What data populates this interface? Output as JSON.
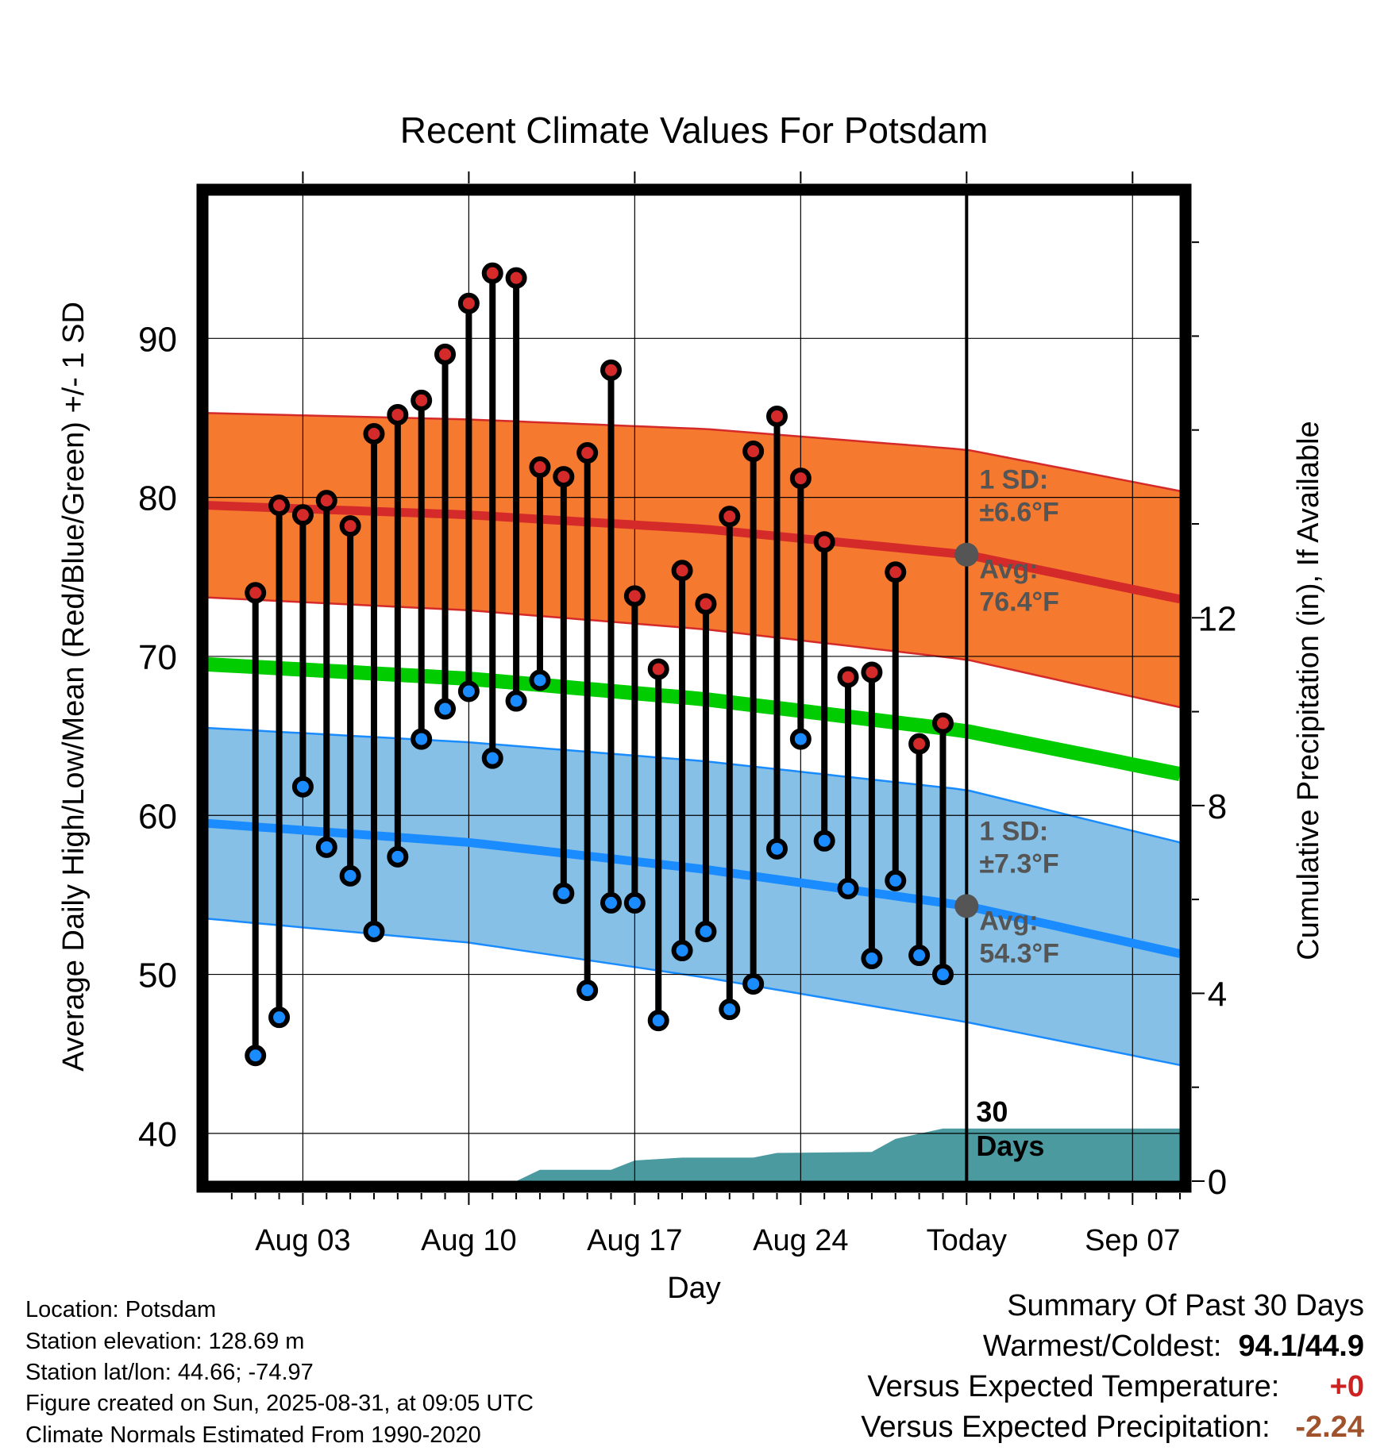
{
  "chart_data": {
    "type": "line",
    "title": "Recent Climate Values For Potsdam",
    "xlabel": "Day",
    "ylabel": "Average Daily High/Low/Mean (Red/Blue/Green) +/- 1 SD",
    "y2label": "Cumulative Precipitation (in), If Available",
    "ylim": [
      37,
      99
    ],
    "y2lim": [
      0,
      21
    ],
    "xlim": [
      "2025-07-30",
      "2025-09-09"
    ],
    "yticks": [
      40,
      50,
      60,
      70,
      80,
      90
    ],
    "y2ticks": [
      0,
      4,
      8,
      12
    ],
    "xticks": [
      {
        "date": "2025-08-03",
        "label": "Aug 03"
      },
      {
        "date": "2025-08-10",
        "label": "Aug 10"
      },
      {
        "date": "2025-08-17",
        "label": "Aug 17"
      },
      {
        "date": "2025-08-24",
        "label": "Aug 24"
      },
      {
        "date": "2025-08-31",
        "label": "Today"
      },
      {
        "date": "2025-09-07",
        "label": "Sep 07"
      }
    ],
    "today": "2025-08-31",
    "grid": true,
    "colors": {
      "high": "#d42a2a",
      "high_band": "#f5792e",
      "low": "#1a8cff",
      "low_band": "#86c0e6",
      "mean": "#00cc00",
      "precip": "#4a9aa0",
      "marker_avg": "#555555"
    },
    "normals": {
      "x": [
        "2025-07-30",
        "2025-08-10",
        "2025-08-20",
        "2025-08-31",
        "2025-09-09"
      ],
      "high_avg": [
        79.5,
        78.9,
        78.0,
        76.4,
        73.6
      ],
      "high_sd": [
        5.8,
        6.0,
        6.3,
        6.6,
        6.8
      ],
      "low_avg": [
        59.5,
        58.3,
        56.6,
        54.3,
        51.3
      ],
      "low_sd": [
        6.0,
        6.3,
        6.8,
        7.3,
        7.0
      ],
      "mean_avg": [
        69.5,
        68.6,
        67.3,
        65.3,
        62.6
      ]
    },
    "daily": [
      {
        "date": "2025-08-01",
        "high": 74.0,
        "low": 44.9
      },
      {
        "date": "2025-08-02",
        "high": 79.5,
        "low": 47.3
      },
      {
        "date": "2025-08-03",
        "high": 78.9,
        "low": 61.8
      },
      {
        "date": "2025-08-04",
        "high": 79.8,
        "low": 58.0
      },
      {
        "date": "2025-08-05",
        "high": 78.2,
        "low": 56.2
      },
      {
        "date": "2025-08-06",
        "high": 84.0,
        "low": 52.7
      },
      {
        "date": "2025-08-07",
        "high": 85.2,
        "low": 57.4
      },
      {
        "date": "2025-08-08",
        "high": 86.1,
        "low": 64.8
      },
      {
        "date": "2025-08-09",
        "high": 89.0,
        "low": 66.7
      },
      {
        "date": "2025-08-10",
        "high": 92.2,
        "low": 67.8
      },
      {
        "date": "2025-08-11",
        "high": 94.1,
        "low": 63.6
      },
      {
        "date": "2025-08-12",
        "high": 93.8,
        "low": 67.2
      },
      {
        "date": "2025-08-13",
        "high": 81.9,
        "low": 68.5
      },
      {
        "date": "2025-08-14",
        "high": 81.3,
        "low": 55.1
      },
      {
        "date": "2025-08-15",
        "high": 82.8,
        "low": 49.0
      },
      {
        "date": "2025-08-16",
        "high": 88.0,
        "low": 54.5
      },
      {
        "date": "2025-08-17",
        "high": 73.8,
        "low": 54.5
      },
      {
        "date": "2025-08-18",
        "high": 69.2,
        "low": 47.1
      },
      {
        "date": "2025-08-19",
        "high": 75.4,
        "low": 51.5
      },
      {
        "date": "2025-08-20",
        "high": 73.3,
        "low": 52.7
      },
      {
        "date": "2025-08-21",
        "high": 78.8,
        "low": 47.8
      },
      {
        "date": "2025-08-22",
        "high": 82.9,
        "low": 49.4
      },
      {
        "date": "2025-08-23",
        "high": 85.1,
        "low": 57.9
      },
      {
        "date": "2025-08-24",
        "high": 81.2,
        "low": 64.8
      },
      {
        "date": "2025-08-25",
        "high": 77.2,
        "low": 58.4
      },
      {
        "date": "2025-08-26",
        "high": 68.7,
        "low": 55.4
      },
      {
        "date": "2025-08-27",
        "high": 69.0,
        "low": 51.0
      },
      {
        "date": "2025-08-28",
        "high": 75.3,
        "low": 55.9
      },
      {
        "date": "2025-08-29",
        "high": 64.5,
        "low": 51.2
      },
      {
        "date": "2025-08-30",
        "high": 65.8,
        "low": 50.0
      }
    ],
    "precip_cumulative": {
      "x": [
        "2025-08-12",
        "2025-08-13",
        "2025-08-16",
        "2025-08-17",
        "2025-08-19",
        "2025-08-22",
        "2025-08-23",
        "2025-08-27",
        "2025-08-28",
        "2025-08-30",
        "2025-09-09"
      ],
      "y": [
        0.0,
        0.24,
        0.24,
        0.44,
        0.5,
        0.5,
        0.6,
        0.62,
        0.9,
        1.12,
        1.12
      ]
    },
    "annotations": {
      "high_sd": "1 SD:",
      "high_sd_value": "±6.6°F",
      "high_avg": "Avg:",
      "high_avg_value": "76.4°F",
      "low_sd": "1 SD:",
      "low_sd_value": "±7.3°F",
      "low_avg": "Avg:",
      "low_avg_value": "54.3°F",
      "precip_days_num": "30",
      "precip_days_word": "Days"
    }
  },
  "info": {
    "location": "Location: Potsdam",
    "elevation": "Station elevation: 128.69 m",
    "latlon": "Station lat/lon: 44.66; -74.97",
    "created": "Figure created on Sun, 2025-08-31, at 09:05 UTC",
    "normals": "Climate Normals Estimated From 1990-2020"
  },
  "summary": {
    "title": "Summary Of Past 30 Days",
    "warm_cold_label": "Warmest/Coldest:",
    "warm_cold_value": "94.1/44.9",
    "temp_label": "Versus Expected Temperature:",
    "temp_value": "+0",
    "temp_color": "#cc2222",
    "precip_label": "Versus Expected Precipitation:",
    "precip_value": "-2.24",
    "precip_color": "#a0522d"
  }
}
